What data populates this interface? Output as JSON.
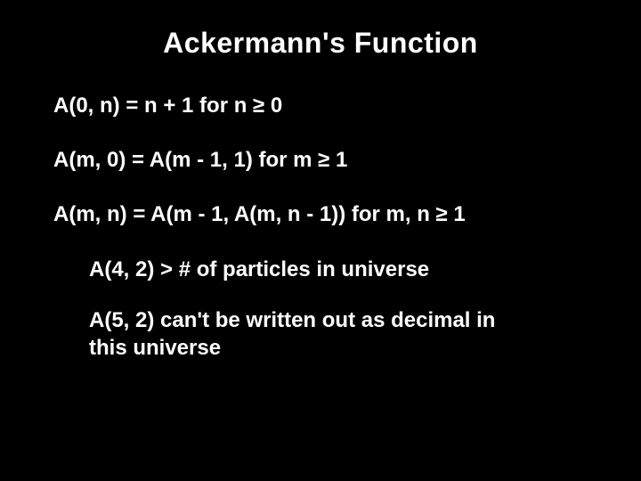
{
  "title": "Ackermann's Function",
  "definitions": [
    "A(0, n) = n + 1 for n ≥ 0",
    "A(m, 0) = A(m - 1, 1) for m ≥ 1",
    "A(m, n) = A(m - 1, A(m, n - 1)) for m, n ≥ 1"
  ],
  "facts": [
    "A(4, 2) > # of particles in universe",
    "A(5, 2) can't be written out as decimal in this universe"
  ],
  "colors": {
    "background": "#000000",
    "text": "#ffffff"
  },
  "typography": {
    "title_fontsize": 32,
    "body_fontsize": 24,
    "font_weight": "bold",
    "font_family": "Arial"
  }
}
